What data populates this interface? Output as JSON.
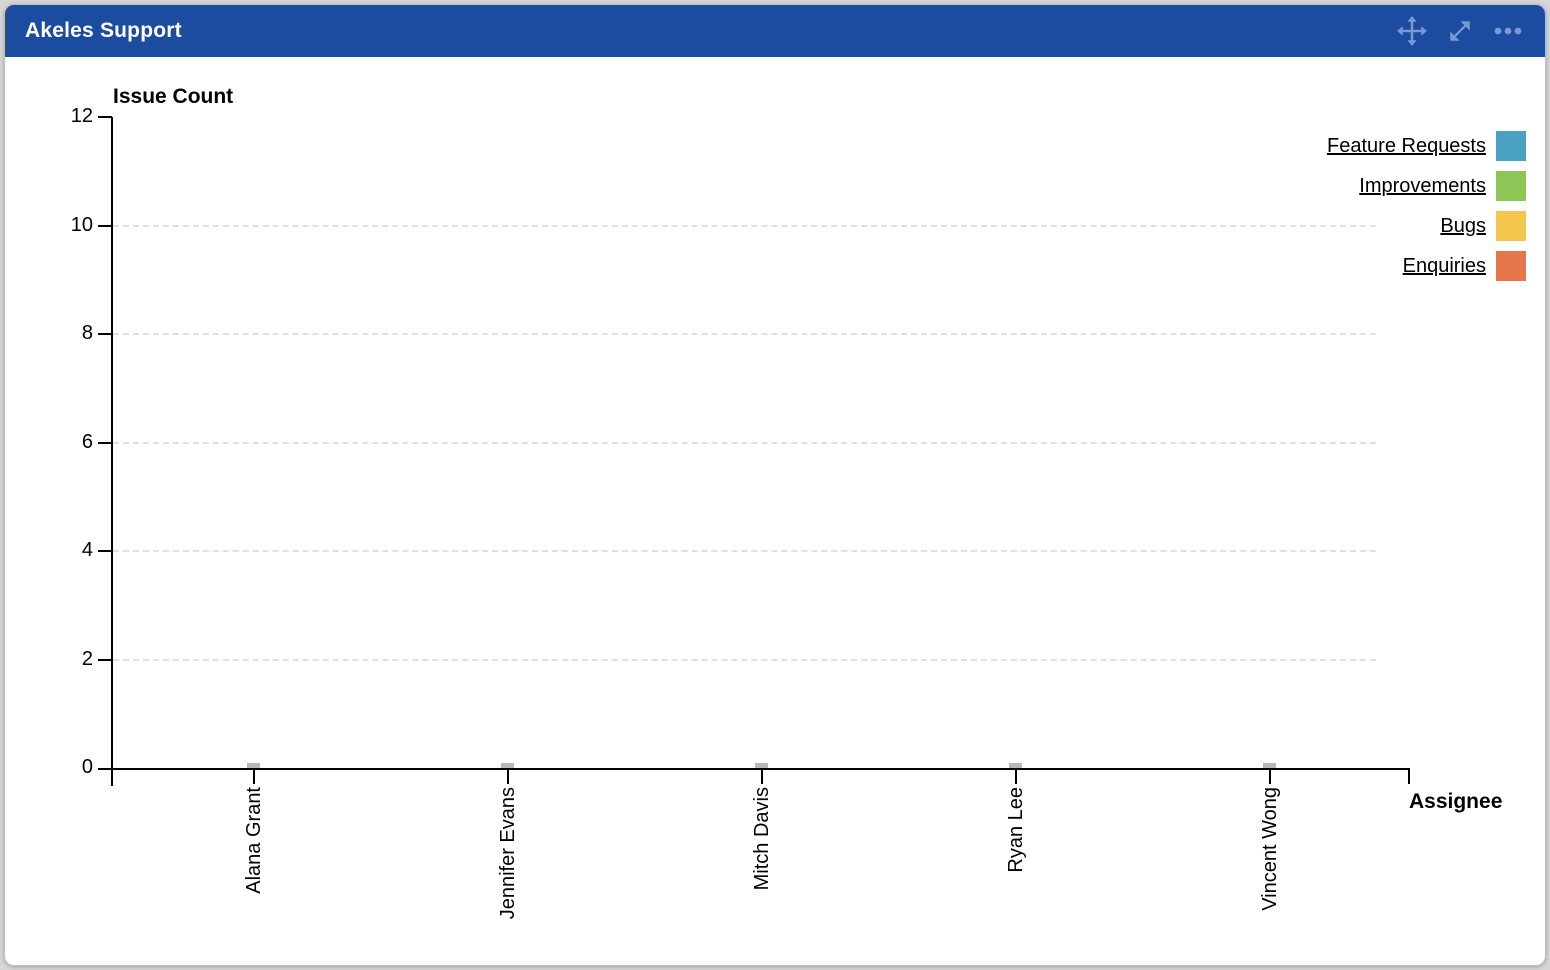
{
  "card": {
    "title": "Akeles Support",
    "icons": [
      {
        "name": "move-icon"
      },
      {
        "name": "expand-icon"
      },
      {
        "name": "ellipsis-icon"
      }
    ]
  },
  "colors": {
    "header_bg": "#1b4ca0",
    "header_icon": "#7b98d2",
    "axis": "#000000",
    "grid": "#e0e0e0",
    "zero_bar_shadow": "#b8b8b8"
  },
  "chart_data": {
    "type": "bar",
    "title": "Akeles Support",
    "xlabel": "Assignee",
    "ylabel": "Issue Count",
    "categories": [
      "Alana Grant",
      "Jennifer Evans",
      "Mitch Davis",
      "Ryan Lee",
      "Vincent Wong"
    ],
    "series": [
      {
        "name": "Feature Requests",
        "color": "#4aa2c3",
        "values": [
          0,
          0,
          0,
          0,
          0
        ]
      },
      {
        "name": "Improvements",
        "color": "#8fc457",
        "values": [
          0,
          0,
          0,
          0,
          0
        ]
      },
      {
        "name": "Bugs",
        "color": "#f5c64d",
        "values": [
          0,
          0,
          0,
          0,
          0
        ]
      },
      {
        "name": "Enquiries",
        "color": "#e5764e",
        "values": [
          0,
          0,
          0,
          0,
          0
        ]
      }
    ],
    "ylim": [
      0,
      12
    ],
    "yticks": [
      12,
      10,
      8,
      6,
      4,
      2,
      0
    ],
    "grid": true,
    "grid_style": "dashed",
    "legend_position": "top-right"
  }
}
